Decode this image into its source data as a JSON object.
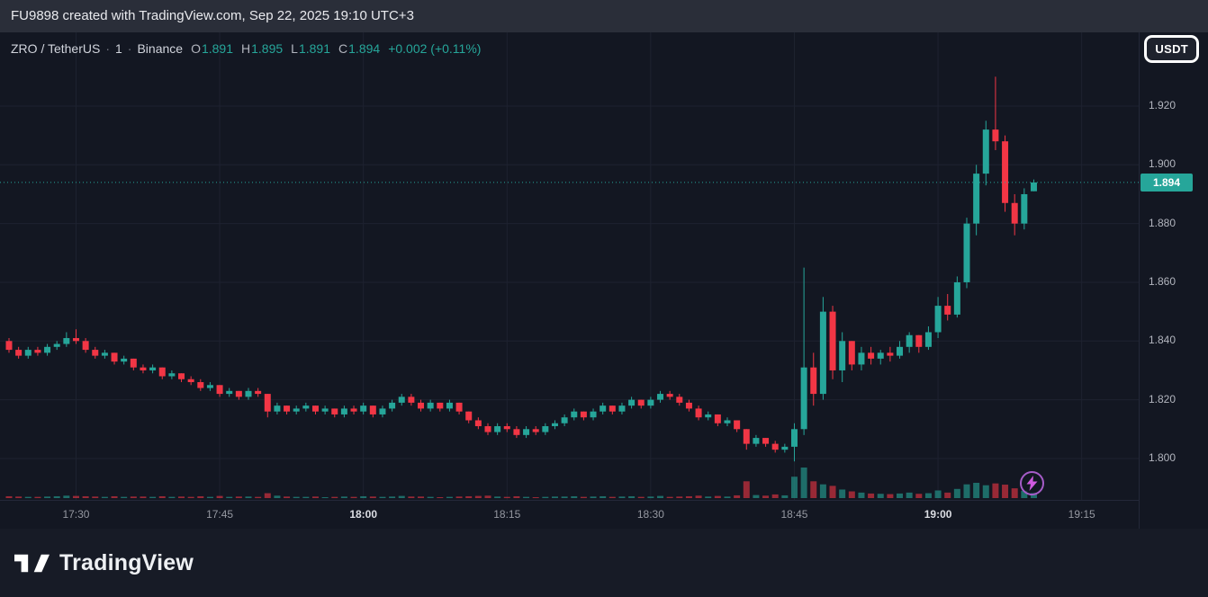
{
  "watermark": {
    "text": "FU9898 created with TradingView.com, Sep 22, 2025 19:10 UTC+3"
  },
  "legend": {
    "symbol": "ZRO / TetherUS",
    "separator": "·",
    "interval": "1",
    "exchange": "Binance",
    "open_label": "O",
    "open": "1.891",
    "high_label": "H",
    "high": "1.895",
    "low_label": "L",
    "low": "1.891",
    "close_label": "C",
    "close": "1.894",
    "change": "+0.002 (+0.11%)"
  },
  "price_scale": {
    "currency_button": "USDT",
    "labels": [
      "1.920",
      "1.900",
      "1.880",
      "1.860",
      "1.840",
      "1.820",
      "1.800"
    ],
    "last_price": "1.894"
  },
  "time_scale": {
    "labels": [
      "17:30",
      "17:45",
      "18:00",
      "18:15",
      "18:30",
      "18:45",
      "19:00",
      "19:15"
    ],
    "emphasized": [
      "18:00",
      "19:00"
    ]
  },
  "footer": {
    "brand": "TradingView"
  },
  "colors": {
    "up": "#26a69a",
    "down": "#f23645",
    "background": "#131722",
    "panel": "#2a2e39",
    "grid": "#1e2230",
    "axis_text": "#b2b5be",
    "accent_purple": "#a65cc8",
    "bolt_pink": "#cf5ae0"
  },
  "chart_data": {
    "type": "candlestick",
    "title": "ZRO / TetherUS · 1 · Binance",
    "x_axis": "time (1-minute bars, 17:23–19:10, UTC+3)",
    "y_axis": "price (USDT)",
    "y_gridlines": [
      1.8,
      1.82,
      1.84,
      1.86,
      1.88,
      1.9,
      1.92
    ],
    "y_range": [
      1.7859,
      1.9451
    ],
    "x_tick_labels": [
      "17:30",
      "17:45",
      "18:00",
      "18:15",
      "18:30",
      "18:45",
      "19:00",
      "19:15"
    ],
    "last_price": 1.894,
    "legend_position": "top-left",
    "grid": true,
    "columns": [
      "time",
      "open",
      "high",
      "low",
      "close",
      "volume_rel_0_100"
    ],
    "candles": [
      [
        "17:23",
        1.84,
        1.841,
        1.836,
        1.837,
        6
      ],
      [
        "17:24",
        1.837,
        1.838,
        1.834,
        1.835,
        5
      ],
      [
        "17:25",
        1.835,
        1.838,
        1.834,
        1.837,
        4
      ],
      [
        "17:26",
        1.837,
        1.838,
        1.835,
        1.836,
        4
      ],
      [
        "17:27",
        1.836,
        1.839,
        1.835,
        1.838,
        5
      ],
      [
        "17:28",
        1.838,
        1.84,
        1.837,
        1.839,
        6
      ],
      [
        "17:29",
        1.839,
        1.843,
        1.838,
        1.841,
        8
      ],
      [
        "17:30",
        1.841,
        1.844,
        1.839,
        1.84,
        7
      ],
      [
        "17:31",
        1.84,
        1.841,
        1.836,
        1.837,
        6
      ],
      [
        "17:32",
        1.837,
        1.838,
        1.834,
        1.835,
        5
      ],
      [
        "17:33",
        1.835,
        1.837,
        1.834,
        1.836,
        4
      ],
      [
        "17:34",
        1.836,
        1.836,
        1.832,
        1.833,
        6
      ],
      [
        "17:35",
        1.833,
        1.835,
        1.832,
        1.834,
        4
      ],
      [
        "17:36",
        1.834,
        1.834,
        1.83,
        1.831,
        5
      ],
      [
        "17:37",
        1.831,
        1.832,
        1.829,
        1.83,
        5
      ],
      [
        "17:38",
        1.83,
        1.832,
        1.829,
        1.831,
        4
      ],
      [
        "17:39",
        1.831,
        1.831,
        1.827,
        1.828,
        6
      ],
      [
        "17:40",
        1.828,
        1.83,
        1.827,
        1.829,
        4
      ],
      [
        "17:41",
        1.829,
        1.829,
        1.826,
        1.827,
        5
      ],
      [
        "17:42",
        1.827,
        1.828,
        1.825,
        1.826,
        4
      ],
      [
        "17:43",
        1.826,
        1.827,
        1.823,
        1.824,
        6
      ],
      [
        "17:44",
        1.824,
        1.826,
        1.823,
        1.825,
        4
      ],
      [
        "17:45",
        1.825,
        1.825,
        1.821,
        1.822,
        7
      ],
      [
        "17:46",
        1.822,
        1.824,
        1.821,
        1.823,
        4
      ],
      [
        "17:47",
        1.823,
        1.823,
        1.82,
        1.821,
        5
      ],
      [
        "17:48",
        1.821,
        1.824,
        1.82,
        1.823,
        5
      ],
      [
        "17:49",
        1.823,
        1.824,
        1.821,
        1.822,
        4
      ],
      [
        "17:50",
        1.822,
        1.822,
        1.814,
        1.816,
        16
      ],
      [
        "17:51",
        1.816,
        1.819,
        1.815,
        1.818,
        8
      ],
      [
        "17:52",
        1.818,
        1.818,
        1.815,
        1.816,
        5
      ],
      [
        "17:53",
        1.816,
        1.818,
        1.815,
        1.817,
        4
      ],
      [
        "17:54",
        1.817,
        1.819,
        1.816,
        1.818,
        4
      ],
      [
        "17:55",
        1.818,
        1.818,
        1.815,
        1.816,
        5
      ],
      [
        "17:56",
        1.816,
        1.818,
        1.815,
        1.817,
        3
      ],
      [
        "17:57",
        1.817,
        1.817,
        1.814,
        1.815,
        4
      ],
      [
        "17:58",
        1.815,
        1.818,
        1.814,
        1.817,
        5
      ],
      [
        "17:59",
        1.817,
        1.818,
        1.815,
        1.816,
        4
      ],
      [
        "18:00",
        1.816,
        1.819,
        1.815,
        1.818,
        6
      ],
      [
        "18:01",
        1.818,
        1.818,
        1.814,
        1.815,
        5
      ],
      [
        "18:02",
        1.815,
        1.818,
        1.814,
        1.817,
        4
      ],
      [
        "18:03",
        1.817,
        1.82,
        1.816,
        1.819,
        5
      ],
      [
        "18:04",
        1.819,
        1.822,
        1.818,
        1.821,
        7
      ],
      [
        "18:05",
        1.821,
        1.822,
        1.818,
        1.819,
        5
      ],
      [
        "18:06",
        1.819,
        1.82,
        1.816,
        1.817,
        5
      ],
      [
        "18:07",
        1.817,
        1.82,
        1.816,
        1.819,
        4
      ],
      [
        "18:08",
        1.819,
        1.819,
        1.816,
        1.817,
        3
      ],
      [
        "18:09",
        1.817,
        1.82,
        1.816,
        1.819,
        4
      ],
      [
        "18:10",
        1.819,
        1.819,
        1.815,
        1.816,
        5
      ],
      [
        "18:11",
        1.816,
        1.816,
        1.812,
        1.813,
        6
      ],
      [
        "18:12",
        1.813,
        1.814,
        1.81,
        1.811,
        7
      ],
      [
        "18:13",
        1.811,
        1.812,
        1.808,
        1.809,
        8
      ],
      [
        "18:14",
        1.809,
        1.812,
        1.808,
        1.811,
        5
      ],
      [
        "18:15",
        1.811,
        1.812,
        1.809,
        1.81,
        4
      ],
      [
        "18:16",
        1.81,
        1.811,
        1.807,
        1.808,
        6
      ],
      [
        "18:17",
        1.808,
        1.811,
        1.807,
        1.81,
        4
      ],
      [
        "18:18",
        1.81,
        1.811,
        1.808,
        1.809,
        3
      ],
      [
        "18:19",
        1.809,
        1.812,
        1.808,
        1.811,
        4
      ],
      [
        "18:20",
        1.811,
        1.813,
        1.81,
        1.812,
        5
      ],
      [
        "18:21",
        1.812,
        1.815,
        1.811,
        1.814,
        5
      ],
      [
        "18:22",
        1.814,
        1.817,
        1.813,
        1.816,
        6
      ],
      [
        "18:23",
        1.816,
        1.816,
        1.813,
        1.814,
        4
      ],
      [
        "18:24",
        1.814,
        1.817,
        1.813,
        1.816,
        5
      ],
      [
        "18:25",
        1.816,
        1.819,
        1.815,
        1.818,
        6
      ],
      [
        "18:26",
        1.818,
        1.818,
        1.815,
        1.816,
        4
      ],
      [
        "18:27",
        1.816,
        1.819,
        1.815,
        1.818,
        5
      ],
      [
        "18:28",
        1.818,
        1.821,
        1.817,
        1.82,
        6
      ],
      [
        "18:29",
        1.82,
        1.82,
        1.817,
        1.818,
        4
      ],
      [
        "18:30",
        1.818,
        1.821,
        1.817,
        1.82,
        5
      ],
      [
        "18:31",
        1.82,
        1.823,
        1.819,
        1.822,
        7
      ],
      [
        "18:32",
        1.822,
        1.823,
        1.82,
        1.821,
        4
      ],
      [
        "18:33",
        1.821,
        1.822,
        1.818,
        1.819,
        5
      ],
      [
        "18:34",
        1.819,
        1.82,
        1.816,
        1.817,
        6
      ],
      [
        "18:35",
        1.817,
        1.818,
        1.813,
        1.814,
        8
      ],
      [
        "18:36",
        1.814,
        1.816,
        1.813,
        1.815,
        5
      ],
      [
        "18:37",
        1.815,
        1.815,
        1.811,
        1.812,
        7
      ],
      [
        "18:38",
        1.812,
        1.814,
        1.811,
        1.813,
        5
      ],
      [
        "18:39",
        1.813,
        1.813,
        1.809,
        1.81,
        9
      ],
      [
        "18:40",
        1.81,
        1.81,
        1.803,
        1.805,
        55
      ],
      [
        "18:41",
        1.805,
        1.808,
        1.804,
        1.807,
        10
      ],
      [
        "18:42",
        1.807,
        1.807,
        1.804,
        1.805,
        8
      ],
      [
        "18:43",
        1.805,
        1.806,
        1.802,
        1.803,
        12
      ],
      [
        "18:44",
        1.803,
        1.805,
        1.802,
        1.804,
        9
      ],
      [
        "18:45",
        1.804,
        1.812,
        1.799,
        1.81,
        70
      ],
      [
        "18:46",
        1.81,
        1.865,
        1.808,
        1.831,
        100
      ],
      [
        "18:47",
        1.831,
        1.836,
        1.818,
        1.822,
        55
      ],
      [
        "18:48",
        1.822,
        1.855,
        1.82,
        1.85,
        45
      ],
      [
        "18:49",
        1.85,
        1.852,
        1.827,
        1.83,
        40
      ],
      [
        "18:50",
        1.83,
        1.843,
        1.826,
        1.84,
        28
      ],
      [
        "18:51",
        1.84,
        1.84,
        1.83,
        1.832,
        22
      ],
      [
        "18:52",
        1.832,
        1.838,
        1.83,
        1.836,
        18
      ],
      [
        "18:53",
        1.836,
        1.838,
        1.832,
        1.834,
        15
      ],
      [
        "18:54",
        1.834,
        1.837,
        1.832,
        1.836,
        14
      ],
      [
        "18:55",
        1.836,
        1.838,
        1.833,
        1.835,
        13
      ],
      [
        "18:56",
        1.835,
        1.84,
        1.834,
        1.838,
        15
      ],
      [
        "18:57",
        1.838,
        1.843,
        1.836,
        1.842,
        18
      ],
      [
        "18:58",
        1.842,
        1.842,
        1.836,
        1.838,
        14
      ],
      [
        "18:59",
        1.838,
        1.845,
        1.837,
        1.843,
        16
      ],
      [
        "19:00",
        1.843,
        1.855,
        1.841,
        1.852,
        25
      ],
      [
        "19:01",
        1.852,
        1.856,
        1.847,
        1.849,
        18
      ],
      [
        "19:02",
        1.849,
        1.862,
        1.848,
        1.86,
        30
      ],
      [
        "19:03",
        1.86,
        1.882,
        1.858,
        1.88,
        45
      ],
      [
        "19:04",
        1.88,
        1.9,
        1.876,
        1.897,
        50
      ],
      [
        "19:05",
        1.897,
        1.915,
        1.893,
        1.912,
        42
      ],
      [
        "19:06",
        1.912,
        1.93,
        1.905,
        1.908,
        48
      ],
      [
        "19:07",
        1.908,
        1.91,
        1.884,
        1.887,
        44
      ],
      [
        "19:08",
        1.887,
        1.89,
        1.876,
        1.88,
        32
      ],
      [
        "19:09",
        1.88,
        1.892,
        1.878,
        1.89,
        24
      ],
      [
        "19:10",
        1.891,
        1.895,
        1.891,
        1.894,
        18
      ]
    ]
  }
}
